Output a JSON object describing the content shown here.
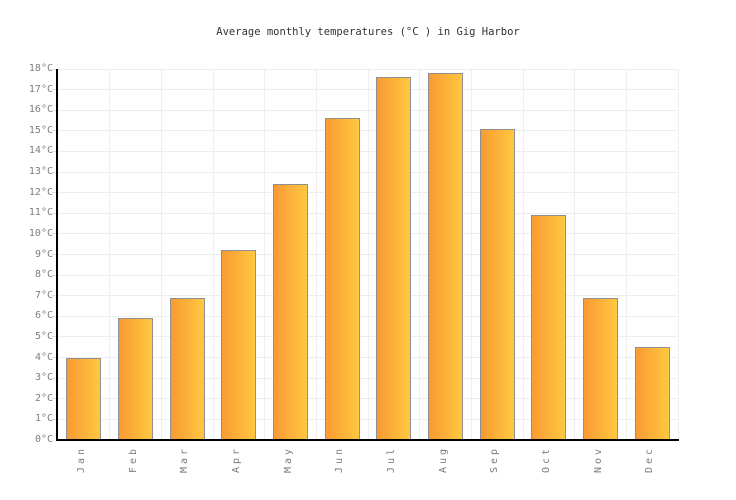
{
  "chart_data": {
    "type": "bar",
    "title": "Average monthly temperatures (°C ) in Gig Harbor",
    "categories": [
      "Jan",
      "Feb",
      "Mar",
      "Apr",
      "May",
      "Jun",
      "Jul",
      "Aug",
      "Sep",
      "Oct",
      "Nov",
      "Dec"
    ],
    "values": [
      4.0,
      5.9,
      6.9,
      9.2,
      12.4,
      15.6,
      17.6,
      17.8,
      15.1,
      10.9,
      6.9,
      4.5
    ],
    "series_name": "Average monthly temperature",
    "unit": "°C",
    "xlabel": "",
    "ylabel": "",
    "ylim": [
      0,
      18
    ],
    "ytick_step": 1,
    "ytick_suffix": "°C",
    "ytick_labels": [
      "0°C",
      "1°C",
      "2°C",
      "3°C",
      "4°C",
      "5°C",
      "6°C",
      "7°C",
      "8°C",
      "9°C",
      "10°C",
      "11°C",
      "12°C",
      "13°C",
      "14°C",
      "15°C",
      "16°C",
      "17°C",
      "18°C"
    ],
    "grid": true,
    "legend_position": "none",
    "colors": {
      "bar_gradient_left": "#FA9A33",
      "bar_gradient_right": "#FEC840",
      "bar_border": "#8F8F8F",
      "gridline": "#EEEEEE",
      "tick_stub": "#E0E0E0",
      "axis": "#000000",
      "tick_label": "#7D7D7D",
      "title_text": "#333333",
      "background": "#FFFFFF"
    }
  }
}
